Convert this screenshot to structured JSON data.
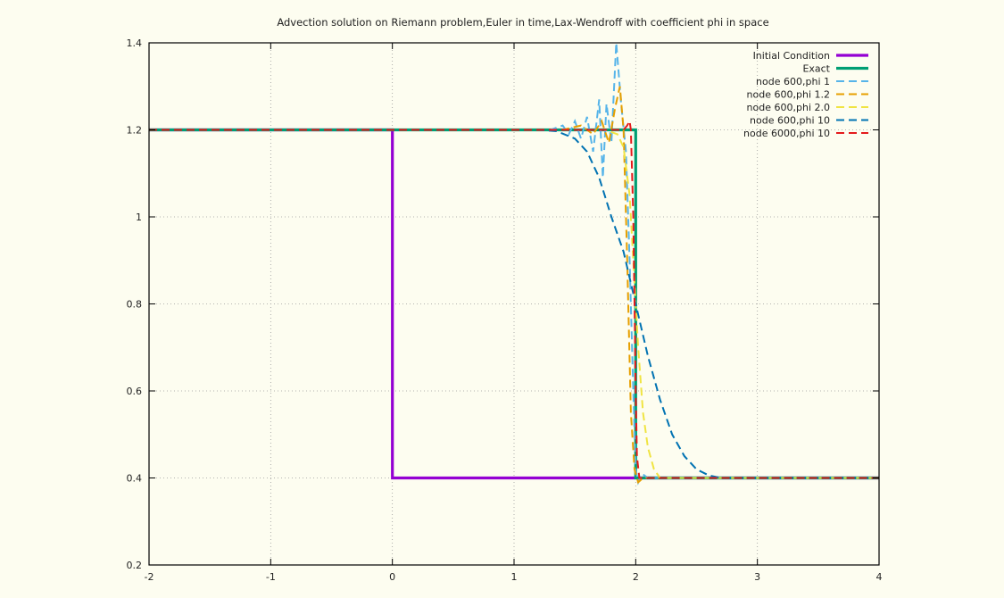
{
  "chart_data": {
    "type": "line",
    "title": "Advection solution on Riemann problem,Euler in time,Lax-Wendroff with coefficient phi in space",
    "xlabel": "",
    "ylabel": "",
    "xlim": [
      -2,
      4
    ],
    "ylim": [
      0.2,
      1.4
    ],
    "xticks": [
      "-2",
      "-1",
      "0",
      "1",
      "2",
      "3",
      "4"
    ],
    "yticks": [
      "0.2",
      "0.4",
      "0.6",
      "0.8",
      "1",
      "1.2",
      "1.4"
    ],
    "grid": true,
    "legend_position": "top-right",
    "series": [
      {
        "name": "Initial Condition",
        "color": "#9400d3",
        "dash": "solid",
        "x": [
          -2,
          0,
          0,
          2,
          4
        ],
        "y": [
          1.2,
          1.2,
          0.4,
          0.4,
          0.4
        ]
      },
      {
        "name": "Exact",
        "color": "#009e73",
        "dash": "solid",
        "x": [
          -2,
          2,
          2,
          4
        ],
        "y": [
          1.2,
          1.2,
          0.4,
          0.4
        ]
      },
      {
        "name": "node 600,phi 1",
        "color": "#56b4e9",
        "dash": "dashed",
        "x": [
          -2,
          1.3,
          1.4,
          1.45,
          1.5,
          1.55,
          1.6,
          1.65,
          1.7,
          1.73,
          1.76,
          1.8,
          1.84,
          1.88,
          1.92,
          1.95,
          1.98,
          2.0,
          2.02,
          2.05,
          2.1,
          4
        ],
        "y": [
          1.2,
          1.2,
          1.21,
          1.19,
          1.22,
          1.18,
          1.23,
          1.15,
          1.27,
          1.09,
          1.26,
          1.17,
          1.4,
          1.26,
          1.15,
          0.9,
          0.6,
          0.42,
          0.39,
          0.41,
          0.4,
          0.4
        ]
      },
      {
        "name": "node 600,phi 1.2",
        "color": "#e69f00",
        "dash": "dashed",
        "x": [
          -2,
          1.4,
          1.55,
          1.65,
          1.72,
          1.78,
          1.83,
          1.87,
          1.9,
          1.93,
          1.96,
          1.99,
          2.02,
          2.06,
          4
        ],
        "y": [
          1.2,
          1.2,
          1.21,
          1.19,
          1.22,
          1.17,
          1.25,
          1.3,
          1.2,
          0.9,
          0.55,
          0.42,
          0.39,
          0.4,
          0.4
        ]
      },
      {
        "name": "node 600,phi 2.0",
        "color": "#f0e442",
        "dash": "dashed",
        "x": [
          -2,
          1.6,
          1.75,
          1.85,
          1.9,
          1.95,
          1.98,
          2.02,
          2.06,
          2.1,
          2.15,
          2.2,
          4
        ],
        "y": [
          1.2,
          1.2,
          1.2,
          1.19,
          1.16,
          1.05,
          0.9,
          0.7,
          0.55,
          0.47,
          0.42,
          0.4,
          0.4
        ]
      },
      {
        "name": "node 600,phi 10",
        "color": "#0072b2",
        "dash": "dashed",
        "x": [
          -2,
          1.2,
          1.35,
          1.5,
          1.6,
          1.7,
          1.8,
          1.9,
          2.0,
          2.1,
          2.2,
          2.3,
          2.4,
          2.5,
          2.6,
          2.7,
          4
        ],
        "y": [
          1.2,
          1.2,
          1.197,
          1.18,
          1.15,
          1.09,
          1.0,
          0.92,
          0.8,
          0.68,
          0.58,
          0.5,
          0.45,
          0.42,
          0.406,
          0.4,
          0.4
        ]
      },
      {
        "name": "node 6000,phi 10",
        "color": "#e41a1c",
        "dash": "dashed",
        "x": [
          -2,
          1.9,
          1.93,
          1.95,
          1.96,
          1.98,
          1.99,
          2.0,
          2.01,
          2.03,
          4
        ],
        "y": [
          1.2,
          1.2,
          1.21,
          1.22,
          1.2,
          1.0,
          0.8,
          0.6,
          0.45,
          0.4,
          0.4
        ]
      }
    ]
  }
}
